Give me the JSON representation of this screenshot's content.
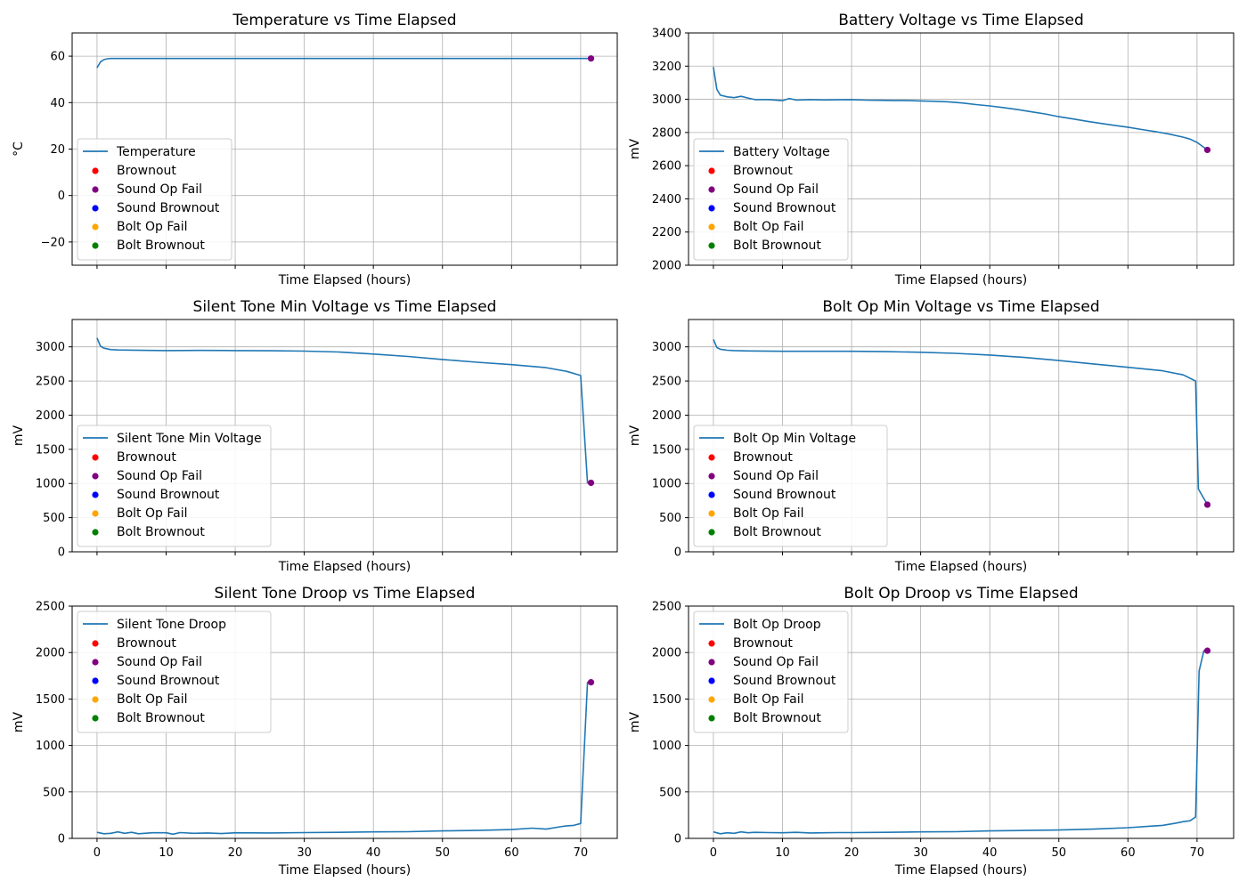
{
  "colors": {
    "line": "#1f77b4",
    "grid": "#b0b0b0",
    "brownout": "#ff0000",
    "sound_op_fail": "#800080",
    "sound_brownout": "#0000ff",
    "bolt_op_fail": "#ffa500",
    "bolt_brownout": "#008000"
  },
  "legend_markers": [
    {
      "label": "Brownout",
      "color": "#ff0000"
    },
    {
      "label": "Sound Op Fail",
      "color": "#800080"
    },
    {
      "label": "Sound Brownout",
      "color": "#0000ff"
    },
    {
      "label": "Bolt Op Fail",
      "color": "#ffa500"
    },
    {
      "label": "Bolt Brownout",
      "color": "#008000"
    }
  ],
  "chart_data": [
    {
      "type": "line",
      "title": "Temperature vs Time Elapsed",
      "xlabel": "Time Elapsed (hours)",
      "ylabel": "°C",
      "xlim": [
        -3.6,
        75.3
      ],
      "ylim": [
        -30,
        70
      ],
      "xticks": [
        0,
        10,
        20,
        30,
        40,
        50,
        60,
        70
      ],
      "show_xticklabels": false,
      "yticks": [
        -20,
        0,
        20,
        40,
        60
      ],
      "yticklabels": [
        "−20",
        "0",
        "20",
        "40",
        "60"
      ],
      "grid": true,
      "legend_loc": "lower left",
      "series": [
        {
          "name": "Temperature",
          "x": [
            0,
            0.5,
            1,
            1.5,
            2,
            3,
            10,
            20,
            30,
            40,
            50,
            60,
            70,
            71.5
          ],
          "y": [
            55,
            57.5,
            58.5,
            58.9,
            59,
            59,
            59,
            59,
            59,
            59,
            59,
            59,
            59,
            59
          ]
        }
      ],
      "events": [
        {
          "type": "Sound Op Fail",
          "x": 71.5,
          "y": 59
        }
      ]
    },
    {
      "type": "line",
      "title": "Battery Voltage vs Time Elapsed",
      "xlabel": "Time Elapsed (hours)",
      "ylabel": "mV",
      "xlim": [
        -3.6,
        75.3
      ],
      "ylim": [
        2000,
        3400
      ],
      "xticks": [
        0,
        10,
        20,
        30,
        40,
        50,
        60,
        70
      ],
      "show_xticklabels": false,
      "yticks": [
        2000,
        2200,
        2400,
        2600,
        2800,
        3000,
        3200,
        3400
      ],
      "yticklabels": [
        "2000",
        "2200",
        "2400",
        "2600",
        "2800",
        "3000",
        "3200",
        "3400"
      ],
      "grid": true,
      "legend_loc": "lower left",
      "series": [
        {
          "name": "Battery Voltage",
          "x": [
            0,
            0.5,
            1,
            2,
            3,
            4,
            5,
            6,
            8,
            10,
            11,
            12,
            14,
            16,
            18,
            20,
            22,
            24,
            26,
            28,
            30,
            32,
            34,
            36,
            38,
            40,
            42,
            44,
            46,
            48,
            50,
            52,
            54,
            56,
            58,
            60,
            62,
            64,
            66,
            68,
            69,
            70,
            71.5
          ],
          "y": [
            3195,
            3060,
            3025,
            3015,
            3010,
            3018,
            3008,
            2998,
            2998,
            2992,
            3005,
            2995,
            2998,
            2996,
            2997,
            2998,
            2995,
            2994,
            2993,
            2993,
            2990,
            2988,
            2985,
            2978,
            2968,
            2960,
            2950,
            2938,
            2925,
            2912,
            2895,
            2882,
            2868,
            2855,
            2843,
            2832,
            2818,
            2805,
            2790,
            2772,
            2760,
            2740,
            2695
          ]
        }
      ],
      "events": [
        {
          "type": "Sound Op Fail",
          "x": 71.5,
          "y": 2695
        }
      ]
    },
    {
      "type": "line",
      "title": "Silent Tone Min Voltage vs Time Elapsed",
      "xlabel": "Time Elapsed (hours)",
      "ylabel": "mV",
      "xlim": [
        -3.6,
        75.3
      ],
      "ylim": [
        0,
        3400
      ],
      "xticks": [
        0,
        10,
        20,
        30,
        40,
        50,
        60,
        70
      ],
      "show_xticklabels": false,
      "yticks": [
        0,
        500,
        1000,
        1500,
        2000,
        2500,
        3000
      ],
      "yticklabels": [
        "0",
        "500",
        "1000",
        "1500",
        "2000",
        "2500",
        "3000"
      ],
      "grid": true,
      "legend_loc": "lower left",
      "series": [
        {
          "name": "Silent Tone Min Voltage",
          "x": [
            0,
            0.5,
            1,
            2,
            3,
            5,
            10,
            15,
            20,
            25,
            30,
            35,
            40,
            45,
            50,
            55,
            60,
            65,
            68,
            70,
            71,
            71.5
          ],
          "y": [
            3130,
            3010,
            2980,
            2960,
            2955,
            2952,
            2945,
            2948,
            2945,
            2943,
            2938,
            2925,
            2895,
            2860,
            2815,
            2775,
            2740,
            2695,
            2640,
            2580,
            1010,
            1010
          ]
        }
      ],
      "events": [
        {
          "type": "Sound Op Fail",
          "x": 71.5,
          "y": 1010
        }
      ]
    },
    {
      "type": "line",
      "title": "Bolt Op Min Voltage vs Time Elapsed",
      "xlabel": "Time Elapsed (hours)",
      "ylabel": "mV",
      "xlim": [
        -3.6,
        75.3
      ],
      "ylim": [
        0,
        3400
      ],
      "xticks": [
        0,
        10,
        20,
        30,
        40,
        50,
        60,
        70
      ],
      "show_xticklabels": false,
      "yticks": [
        0,
        500,
        1000,
        1500,
        2000,
        2500,
        3000
      ],
      "yticklabels": [
        "0",
        "500",
        "1000",
        "1500",
        "2000",
        "2500",
        "3000"
      ],
      "grid": true,
      "legend_loc": "lower left",
      "series": [
        {
          "name": "Bolt Op Min Voltage",
          "x": [
            0,
            0.5,
            1,
            2,
            3,
            5,
            10,
            15,
            20,
            25,
            30,
            35,
            40,
            45,
            50,
            55,
            60,
            65,
            68,
            69.8,
            70.2,
            71.5
          ],
          "y": [
            3110,
            2990,
            2965,
            2950,
            2945,
            2940,
            2935,
            2935,
            2935,
            2930,
            2920,
            2905,
            2880,
            2845,
            2800,
            2750,
            2700,
            2650,
            2590,
            2500,
            920,
            690
          ]
        }
      ],
      "events": [
        {
          "type": "Sound Op Fail",
          "x": 71.5,
          "y": 690
        }
      ]
    },
    {
      "type": "line",
      "title": "Silent Tone Droop vs Time Elapsed",
      "xlabel": "Time Elapsed (hours)",
      "ylabel": "mV",
      "xlim": [
        -3.6,
        75.3
      ],
      "ylim": [
        0,
        2500
      ],
      "xticks": [
        0,
        10,
        20,
        30,
        40,
        50,
        60,
        70
      ],
      "xticklabels": [
        "0",
        "10",
        "20",
        "30",
        "40",
        "50",
        "60",
        "70"
      ],
      "show_xticklabels": true,
      "yticks": [
        0,
        500,
        1000,
        1500,
        2000,
        2500
      ],
      "yticklabels": [
        "0",
        "500",
        "1000",
        "1500",
        "2000",
        "2500"
      ],
      "grid": true,
      "legend_loc": "upper left",
      "series": [
        {
          "name": "Silent Tone Droop",
          "x": [
            0,
            1,
            2,
            3,
            4,
            5,
            6,
            8,
            10,
            11,
            12,
            14,
            16,
            18,
            20,
            25,
            30,
            35,
            40,
            45,
            50,
            55,
            60,
            63,
            65,
            67,
            68,
            69,
            70,
            71,
            71.5
          ],
          "y": [
            65,
            50,
            55,
            70,
            55,
            65,
            50,
            60,
            60,
            45,
            62,
            55,
            58,
            52,
            60,
            58,
            62,
            65,
            70,
            72,
            80,
            85,
            95,
            110,
            100,
            125,
            135,
            140,
            160,
            1680,
            1680
          ]
        }
      ],
      "events": [
        {
          "type": "Sound Op Fail",
          "x": 71.5,
          "y": 1680
        }
      ]
    },
    {
      "type": "line",
      "title": "Bolt Op Droop vs Time Elapsed",
      "xlabel": "Time Elapsed (hours)",
      "ylabel": "mV",
      "xlim": [
        -3.6,
        75.3
      ],
      "ylim": [
        0,
        2500
      ],
      "xticks": [
        0,
        10,
        20,
        30,
        40,
        50,
        60,
        70
      ],
      "xticklabels": [
        "0",
        "10",
        "20",
        "30",
        "40",
        "50",
        "60",
        "70"
      ],
      "show_xticklabels": true,
      "yticks": [
        0,
        500,
        1000,
        1500,
        2000,
        2500
      ],
      "yticklabels": [
        "0",
        "500",
        "1000",
        "1500",
        "2000",
        "2500"
      ],
      "grid": true,
      "legend_loc": "upper left",
      "series": [
        {
          "name": "Bolt Op Droop",
          "x": [
            0,
            1,
            2,
            3,
            4,
            5,
            6,
            8,
            10,
            12,
            14,
            16,
            18,
            20,
            25,
            30,
            35,
            40,
            45,
            50,
            55,
            60,
            63,
            65,
            67,
            68,
            69,
            69.8,
            70.3,
            71,
            71.5
          ],
          "y": [
            70,
            50,
            60,
            55,
            70,
            60,
            65,
            62,
            60,
            65,
            58,
            60,
            62,
            62,
            65,
            70,
            72,
            80,
            85,
            90,
            100,
            115,
            130,
            140,
            165,
            180,
            190,
            230,
            1800,
            2020,
            2020
          ]
        }
      ],
      "events": [
        {
          "type": "Sound Op Fail",
          "x": 71.5,
          "y": 2020
        }
      ]
    }
  ]
}
